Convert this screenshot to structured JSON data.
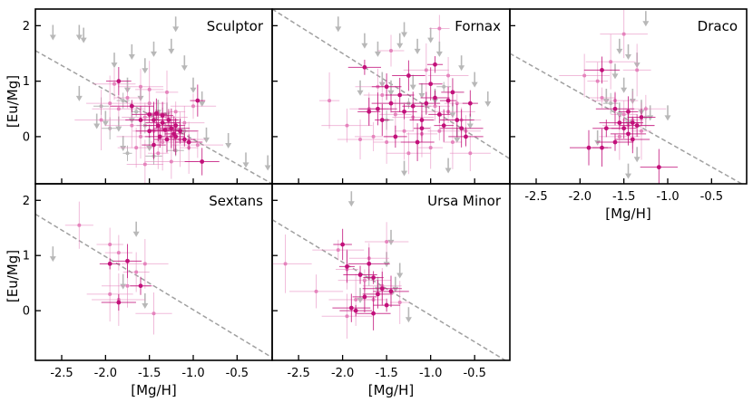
{
  "figure": {
    "xlabel": "[Mg/H]",
    "ylabel": "[Eu/Mg]"
  },
  "chart_data": [
    {
      "type": "scatter",
      "panel": "Sculptor",
      "xlim": [
        -2.8,
        -0.1
      ],
      "ylim": [
        -0.85,
        2.3
      ],
      "xticks": [],
      "xtick_labels": [],
      "yticks": [
        0,
        1,
        2
      ],
      "ytick_labels": [
        "0",
        "1",
        "2"
      ],
      "trend_line": [
        [
          -2.8,
          1.55
        ],
        [
          -0.1,
          -0.85
        ]
      ],
      "grey_upper_limits": [
        [
          -2.6,
          1.9
        ],
        [
          -2.3,
          1.9
        ],
        [
          -2.25,
          1.85
        ],
        [
          -1.9,
          1.4
        ],
        [
          -1.7,
          1.55
        ],
        [
          -1.55,
          1.3
        ],
        [
          -1.45,
          1.6
        ],
        [
          -1.25,
          1.65
        ],
        [
          -1.2,
          2.05
        ],
        [
          -1.1,
          1.35
        ],
        [
          -1.75,
          0.95
        ],
        [
          -1.6,
          0.8
        ],
        [
          -2.3,
          0.8
        ],
        [
          -0.9,
          0.7
        ],
        [
          -1.0,
          0.95
        ],
        [
          -2.1,
          0.3
        ],
        [
          -2.0,
          0.35
        ],
        [
          -1.85,
          0.25
        ],
        [
          -1.7,
          0.4
        ],
        [
          -1.4,
          0.55
        ],
        [
          -1.3,
          0.5
        ],
        [
          -1.15,
          0.2
        ],
        [
          -0.85,
          0.05
        ],
        [
          -0.6,
          -0.05
        ],
        [
          -0.4,
          -0.4
        ],
        [
          -0.15,
          -0.45
        ],
        [
          -1.5,
          -0.1
        ],
        [
          -1.8,
          -0.1
        ]
      ],
      "grey_points": [
        [
          -2.05,
          0.55
        ],
        [
          -1.8,
          0.65
        ],
        [
          -1.65,
          0.45
        ],
        [
          -1.55,
          0.2
        ],
        [
          -1.35,
          0.4
        ],
        [
          -1.1,
          0.1
        ],
        [
          -1.95,
          0.15
        ],
        [
          -1.75,
          -0.3
        ],
        [
          -1.45,
          -0.35
        ],
        [
          -1.2,
          -0.25
        ]
      ],
      "light_points": [
        [
          -2.05,
          0.3
        ],
        [
          -1.95,
          0.6
        ],
        [
          -1.85,
          0.5
        ],
        [
          -1.7,
          0.2
        ],
        [
          -1.6,
          0.0
        ],
        [
          -1.55,
          0.35
        ],
        [
          -1.5,
          0.6
        ],
        [
          -1.45,
          0.1
        ],
        [
          -1.35,
          -0.1
        ],
        [
          -1.3,
          0.35
        ],
        [
          -1.25,
          0.0
        ],
        [
          -1.2,
          0.45
        ],
        [
          -1.15,
          -0.05
        ],
        [
          -1.1,
          0.25
        ],
        [
          -1.05,
          -0.2
        ],
        [
          -0.95,
          -0.15
        ],
        [
          -1.75,
          0.7
        ],
        [
          -1.65,
          -0.2
        ],
        [
          -1.4,
          -0.3
        ],
        [
          -1.5,
          0.85
        ],
        [
          -1.9,
          0.95
        ],
        [
          -1.0,
          0.55
        ],
        [
          -1.6,
          0.9
        ],
        [
          -1.3,
          0.8
        ],
        [
          -1.55,
          -0.5
        ],
        [
          -1.25,
          -0.45
        ]
      ],
      "dark_points": [
        [
          -1.85,
          1.0
        ],
        [
          -1.5,
          0.1
        ],
        [
          -1.45,
          0.3
        ],
        [
          -1.4,
          0.2
        ],
        [
          -1.38,
          0.0
        ],
        [
          -1.35,
          0.25
        ],
        [
          -1.32,
          0.12
        ],
        [
          -1.3,
          -0.05
        ],
        [
          -1.28,
          0.3
        ],
        [
          -1.25,
          0.15
        ],
        [
          -1.22,
          0.05
        ],
        [
          -1.2,
          0.2
        ],
        [
          -1.15,
          0.1
        ],
        [
          -1.1,
          -0.05
        ],
        [
          -1.05,
          -0.1
        ],
        [
          -0.95,
          0.65
        ],
        [
          -1.5,
          0.4
        ],
        [
          -1.42,
          0.42
        ],
        [
          -1.6,
          0.3
        ],
        [
          -1.7,
          0.55
        ],
        [
          -1.45,
          -0.15
        ],
        [
          -0.9,
          -0.45
        ],
        [
          -1.2,
          0.0
        ],
        [
          -1.35,
          0.38
        ]
      ]
    },
    {
      "type": "scatter",
      "panel": "Fornax",
      "xlim": [
        -2.8,
        -0.1
      ],
      "ylim": [
        -0.85,
        2.3
      ],
      "xticks": [],
      "xtick_labels": [],
      "yticks": [],
      "ytick_labels": [],
      "trend_line": [
        [
          -2.8,
          2.3
        ],
        [
          -0.1,
          -0.4
        ]
      ],
      "grey_upper_limits": [
        [
          -2.05,
          2.05
        ],
        [
          -1.75,
          1.75
        ],
        [
          -1.6,
          1.6
        ],
        [
          -1.35,
          1.75
        ],
        [
          -1.3,
          1.95
        ],
        [
          -1.15,
          1.65
        ],
        [
          -1.0,
          1.85
        ],
        [
          -0.9,
          1.6
        ],
        [
          -0.65,
          1.35
        ],
        [
          -0.5,
          1.05
        ],
        [
          -0.35,
          0.7
        ],
        [
          -1.8,
          0.9
        ],
        [
          -1.55,
          1.05
        ],
        [
          -1.45,
          0.9
        ],
        [
          -1.2,
          1.0
        ],
        [
          -1.1,
          0.85
        ],
        [
          -0.95,
          0.75
        ],
        [
          -0.75,
          0.5
        ],
        [
          -0.55,
          0.3
        ],
        [
          -0.7,
          0.05
        ],
        [
          -0.8,
          -0.5
        ],
        [
          -1.3,
          -0.55
        ]
      ],
      "grey_points": [
        [
          -1.5,
          0.3
        ],
        [
          -1.25,
          0.6
        ],
        [
          -1.05,
          0.55
        ],
        [
          -0.85,
          0.9
        ]
      ],
      "light_points": [
        [
          -2.15,
          0.65
        ],
        [
          -1.95,
          0.2
        ],
        [
          -1.8,
          -0.05
        ],
        [
          -1.7,
          0.5
        ],
        [
          -1.65,
          0.0
        ],
        [
          -1.55,
          0.75
        ],
        [
          -1.5,
          -0.1
        ],
        [
          -1.4,
          0.4
        ],
        [
          -1.3,
          0.1
        ],
        [
          -1.25,
          -0.3
        ],
        [
          -1.2,
          0.35
        ],
        [
          -1.1,
          0.05
        ],
        [
          -1.0,
          -0.2
        ],
        [
          -0.95,
          0.55
        ],
        [
          -0.9,
          0.1
        ],
        [
          -0.8,
          0.45
        ],
        [
          -0.75,
          -0.1
        ],
        [
          -0.7,
          0.6
        ],
        [
          -0.6,
          0.1
        ],
        [
          -0.55,
          -0.3
        ],
        [
          -1.45,
          1.55
        ],
        [
          -0.9,
          1.95
        ],
        [
          -1.05,
          1.2
        ],
        [
          -0.8,
          1.1
        ],
        [
          -1.6,
          0.9
        ],
        [
          -0.65,
          0.3
        ]
      ],
      "dark_points": [
        [
          -1.75,
          1.25
        ],
        [
          -1.6,
          0.5
        ],
        [
          -1.55,
          0.3
        ],
        [
          -1.45,
          0.6
        ],
        [
          -1.4,
          0.0
        ],
        [
          -1.35,
          0.75
        ],
        [
          -1.3,
          0.45
        ],
        [
          -1.2,
          0.55
        ],
        [
          -1.15,
          -0.1
        ],
        [
          -1.1,
          0.3
        ],
        [
          -1.05,
          0.6
        ],
        [
          -1.0,
          0.95
        ],
        [
          -0.95,
          0.7
        ],
        [
          -0.9,
          0.4
        ],
        [
          -0.85,
          0.2
        ],
        [
          -0.8,
          0.65
        ],
        [
          -0.7,
          0.3
        ],
        [
          -0.65,
          0.15
        ],
        [
          -0.6,
          0.0
        ],
        [
          -1.25,
          1.1
        ],
        [
          -0.95,
          1.3
        ],
        [
          -1.5,
          0.9
        ],
        [
          -1.7,
          0.45
        ],
        [
          -0.75,
          0.8
        ],
        [
          -1.1,
          0.15
        ],
        [
          -0.55,
          0.6
        ]
      ]
    },
    {
      "type": "scatter",
      "panel": "Draco",
      "xlim": [
        -2.8,
        -0.1
      ],
      "ylim": [
        -0.85,
        2.3
      ],
      "xticks": [
        -2.5,
        -2.0,
        -1.5,
        -1.0,
        -0.5
      ],
      "xtick_labels": [
        "-2.5",
        "-2.0",
        "-1.5",
        "-1.0",
        "-0.5"
      ],
      "yticks": [],
      "ytick_labels": [],
      "xlabel": "[Mg/H]",
      "trend_line": [
        [
          -2.8,
          1.5
        ],
        [
          -0.1,
          -0.9
        ]
      ],
      "grey_upper_limits": [
        [
          -1.55,
          1.65
        ],
        [
          -1.45,
          1.55
        ],
        [
          -1.35,
          1.4
        ],
        [
          -1.25,
          2.15
        ],
        [
          -1.6,
          1.2
        ],
        [
          -1.5,
          0.95
        ],
        [
          -1.4,
          0.75
        ],
        [
          -1.3,
          0.55
        ],
        [
          -1.2,
          0.45
        ],
        [
          -1.0,
          0.45
        ],
        [
          -1.7,
          0.75
        ],
        [
          -1.55,
          0.5
        ],
        [
          -1.45,
          0.35
        ],
        [
          -1.35,
          -0.3
        ],
        [
          -1.45,
          -0.6
        ],
        [
          -1.8,
          0.0
        ]
      ],
      "grey_points": [
        [
          -1.65,
          0.6
        ],
        [
          -1.25,
          0.35
        ]
      ],
      "light_points": [
        [
          -1.95,
          1.1
        ],
        [
          -1.8,
          1.0
        ],
        [
          -1.75,
          0.7
        ],
        [
          -1.6,
          0.65
        ],
        [
          -1.55,
          0.0
        ],
        [
          -1.5,
          0.4
        ],
        [
          -1.45,
          0.2
        ],
        [
          -1.4,
          0.3
        ],
        [
          -1.35,
          1.2
        ],
        [
          -1.65,
          1.35
        ],
        [
          -1.5,
          1.85
        ],
        [
          -1.3,
          0.1
        ],
        [
          -1.25,
          0.5
        ]
      ],
      "dark_points": [
        [
          -1.9,
          -0.2
        ],
        [
          -1.75,
          -0.2
        ],
        [
          -1.7,
          0.15
        ],
        [
          -1.6,
          0.5
        ],
        [
          -1.55,
          0.25
        ],
        [
          -1.5,
          0.15
        ],
        [
          -1.45,
          0.45
        ],
        [
          -1.4,
          -0.05
        ],
        [
          -1.35,
          0.2
        ],
        [
          -1.3,
          0.35
        ],
        [
          -1.6,
          -0.1
        ],
        [
          -1.45,
          0.05
        ],
        [
          -1.1,
          -0.55
        ],
        [
          -1.4,
          0.25
        ],
        [
          -1.75,
          1.2
        ]
      ]
    },
    {
      "type": "scatter",
      "panel": "Sextans",
      "xlim": [
        -2.8,
        -0.1
      ],
      "ylim": [
        -0.9,
        2.3
      ],
      "xticks": [
        -2.5,
        -2.0,
        -1.5,
        -1.0,
        -0.5
      ],
      "xtick_labels": [
        "-2.5",
        "-2.0",
        "-1.5",
        "-1.0",
        "-0.5"
      ],
      "yticks": [
        0,
        1,
        2
      ],
      "ytick_labels": [
        "0",
        "1",
        "2"
      ],
      "xlabel": "[Mg/H]",
      "trend_line": [
        [
          -2.8,
          1.75
        ],
        [
          -0.1,
          -0.85
        ]
      ],
      "grey_upper_limits": [
        [
          -2.6,
          1.05
        ],
        [
          -1.65,
          1.5
        ],
        [
          -1.8,
          0.55
        ],
        [
          -1.55,
          0.2
        ]
      ],
      "grey_points": [],
      "light_points": [
        [
          -2.3,
          1.55
        ],
        [
          -1.95,
          1.2
        ],
        [
          -1.85,
          1.05
        ],
        [
          -1.75,
          0.45
        ],
        [
          -1.65,
          0.7
        ],
        [
          -1.55,
          0.85
        ],
        [
          -1.95,
          0.3
        ],
        [
          -1.85,
          0.2
        ],
        [
          -1.45,
          -0.05
        ]
      ],
      "dark_points": [
        [
          -1.95,
          0.85
        ],
        [
          -1.85,
          0.15
        ],
        [
          -1.6,
          0.45
        ],
        [
          -1.75,
          0.9
        ]
      ]
    },
    {
      "type": "scatter",
      "panel": "Ursa Minor",
      "xlim": [
        -2.8,
        -0.1
      ],
      "ylim": [
        -0.9,
        2.3
      ],
      "xticks": [
        -2.5,
        -2.0,
        -1.5,
        -1.0,
        -0.5
      ],
      "xtick_labels": [
        "-2.5",
        "-2.0",
        "-1.5",
        "-1.0",
        "-0.5"
      ],
      "yticks": [],
      "ytick_labels": [],
      "xlabel": "[Mg/H]",
      "trend_line": [
        [
          -2.8,
          1.65
        ],
        [
          -0.1,
          -0.95
        ]
      ],
      "grey_upper_limits": [
        [
          -1.9,
          2.05
        ],
        [
          -1.45,
          1.35
        ],
        [
          -1.35,
          0.75
        ],
        [
          -1.4,
          0.5
        ],
        [
          -1.5,
          0.95
        ],
        [
          -1.25,
          -0.05
        ],
        [
          -1.8,
          0.3
        ],
        [
          -1.6,
          0.5
        ]
      ],
      "grey_points": [
        [
          -1.7,
          0.6
        ]
      ],
      "light_points": [
        [
          -2.65,
          0.85
        ],
        [
          -2.3,
          0.35
        ],
        [
          -2.05,
          1.1
        ],
        [
          -1.95,
          0.75
        ],
        [
          -1.85,
          0.2
        ],
        [
          -1.75,
          0.55
        ],
        [
          -1.65,
          0.2
        ],
        [
          -1.55,
          0.45
        ],
        [
          -1.35,
          0.15
        ],
        [
          -1.95,
          -0.1
        ],
        [
          -1.7,
          0.95
        ],
        [
          -1.5,
          1.25
        ]
      ],
      "dark_points": [
        [
          -2.0,
          1.2
        ],
        [
          -1.95,
          0.8
        ],
        [
          -1.9,
          0.05
        ],
        [
          -1.85,
          0.0
        ],
        [
          -1.8,
          0.65
        ],
        [
          -1.7,
          0.85
        ],
        [
          -1.65,
          -0.05
        ],
        [
          -1.6,
          0.3
        ],
        [
          -1.55,
          0.4
        ],
        [
          -1.5,
          0.1
        ],
        [
          -1.45,
          0.35
        ],
        [
          -1.65,
          0.6
        ],
        [
          -1.75,
          0.25
        ]
      ]
    }
  ],
  "colors": {
    "dark": "#c2107a",
    "light": "#e584bd",
    "grey": "#b8b8b8",
    "trend": "#a0a0a0"
  }
}
